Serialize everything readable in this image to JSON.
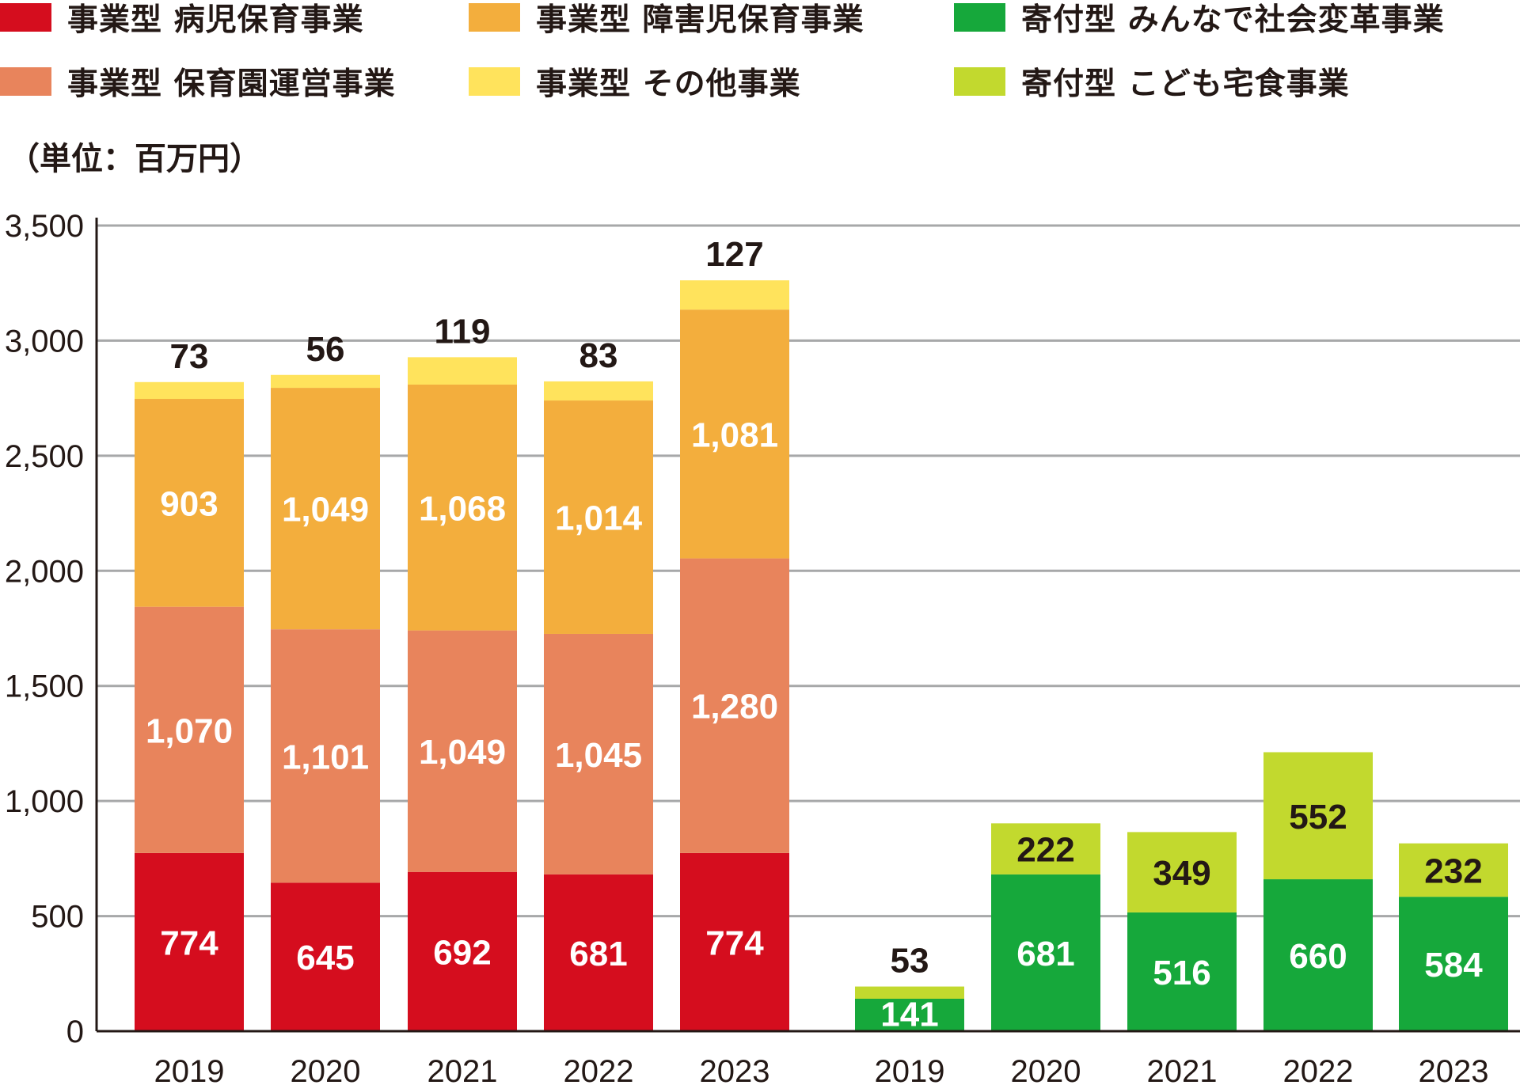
{
  "legend": {
    "items": [
      {
        "label": "事業型 病児保育事業",
        "color": "#d50d1e"
      },
      {
        "label": "事業型 障害児保育事業",
        "color": "#f3ae3d"
      },
      {
        "label": "寄付型 みんなで社会変革事業",
        "color": "#16a83b"
      },
      {
        "label": "事業型 保育園運営事業",
        "color": "#e8845c"
      },
      {
        "label": "事業型 その他事業",
        "color": "#ffe35c"
      },
      {
        "label": "寄付型 こども宅食事業",
        "color": "#c2d92e"
      }
    ]
  },
  "unit_label": "（単位：百万円）",
  "chart_data": {
    "type": "bar",
    "stacked": true,
    "ylim": [
      0,
      3500
    ],
    "yticks": [
      0,
      500,
      1000,
      1500,
      2000,
      2500,
      3000,
      3500
    ],
    "ytick_labels": [
      "0",
      "500",
      "1,000",
      "1,500",
      "2,000",
      "2,500",
      "3,000",
      "3,500"
    ],
    "grid": true,
    "groups": [
      {
        "name": "事業型",
        "categories": [
          "2019",
          "2020",
          "2021",
          "2022",
          "2023"
        ],
        "series": [
          {
            "name": "事業型 病児保育事業",
            "color": "#d50d1e",
            "values": [
              774,
              645,
              692,
              681,
              774
            ],
            "labels": [
              "774",
              "645",
              "692",
              "681",
              "774"
            ],
            "label_color": "#ffffff",
            "label_position": "inside"
          },
          {
            "name": "事業型 保育園運営事業",
            "color": "#e8845c",
            "values": [
              1070,
              1101,
              1049,
              1045,
              1280
            ],
            "labels": [
              "1,070",
              "1,101",
              "1,049",
              "1,045",
              "1,280"
            ],
            "label_color": "#ffffff",
            "label_position": "inside"
          },
          {
            "name": "事業型 障害児保育事業",
            "color": "#f3ae3d",
            "values": [
              903,
              1049,
              1068,
              1014,
              1081
            ],
            "labels": [
              "903",
              "1,049",
              "1,068",
              "1,014",
              "1,081"
            ],
            "label_color": "#ffffff",
            "label_position": "inside"
          },
          {
            "name": "事業型 その他事業",
            "color": "#ffe35c",
            "values": [
              73,
              56,
              119,
              83,
              127
            ],
            "labels": [
              "73",
              "56",
              "119",
              "83",
              "127"
            ],
            "label_color": "#231815",
            "label_position": "above"
          }
        ]
      },
      {
        "name": "寄付型",
        "categories": [
          "2019",
          "2020",
          "2021",
          "2022",
          "2023"
        ],
        "series": [
          {
            "name": "寄付型 みんなで社会変革事業",
            "color": "#16a83b",
            "values": [
              141,
              681,
              516,
              660,
              584
            ],
            "labels": [
              "141",
              "681",
              "516",
              "660",
              "584"
            ],
            "label_color": "#ffffff",
            "label_position": "inside"
          },
          {
            "name": "寄付型 こども宅食事業",
            "color": "#c2d92e",
            "values": [
              53,
              222,
              349,
              552,
              232
            ],
            "labels": [
              "53",
              "222",
              "349",
              "552",
              "232"
            ],
            "label_color": "#231815",
            "label_position": "inside_or_above"
          }
        ]
      }
    ]
  }
}
